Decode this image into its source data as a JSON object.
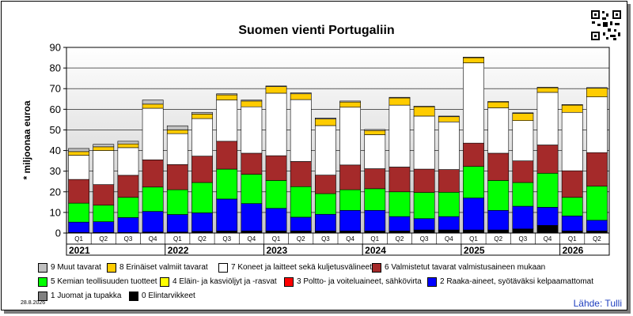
{
  "chart_data": {
    "type": "bar",
    "stacked": true,
    "title": "Suomen vienti Portugaliin",
    "ylabel": "* miljoonaa euroa",
    "ylim": [
      0,
      90
    ],
    "yticks": [
      0,
      10,
      20,
      30,
      40,
      50,
      60,
      70,
      80,
      90
    ],
    "grid": true,
    "legend_position": "bottom",
    "categories": [
      "2021 Q1",
      "2021 Q2",
      "2021 Q3",
      "2021 Q4",
      "2022 Q1",
      "2022 Q2",
      "2022 Q3",
      "2022 Q4",
      "2023 Q1",
      "2023 Q2",
      "2023 Q3",
      "2023 Q4",
      "2024 Q1",
      "2024 Q2",
      "2024 Q3",
      "2024 Q4",
      "2025 Q1",
      "2025 Q2",
      "2025 Q3",
      "2025 Q4",
      "2026 Q1",
      "2026 Q2"
    ],
    "quarter_labels": [
      "Q1",
      "Q2",
      "Q3",
      "Q4",
      "Q1",
      "Q2",
      "Q3",
      "Q4",
      "Q1",
      "Q2",
      "Q3",
      "Q4",
      "Q1",
      "Q2",
      "Q3",
      "Q4",
      "Q1",
      "Q2",
      "Q3",
      "Q4",
      "Q1",
      "Q2"
    ],
    "years": [
      "2021",
      "2022",
      "2023",
      "2024",
      "2025",
      "2026"
    ],
    "series": [
      {
        "name": "0 Elintarvikkeet",
        "color": "#000000",
        "values": [
          0.3,
          0.3,
          0.3,
          0.5,
          0.5,
          0.8,
          1.0,
          1.0,
          1.0,
          1.0,
          1.0,
          1.0,
          1.0,
          1.0,
          1.5,
          1.5,
          1.5,
          1.5,
          2.0,
          3.7,
          1.0,
          1.0
        ]
      },
      {
        "name": "1 Juomat ja tupakka",
        "color": "#808080",
        "values": [
          0,
          0,
          0,
          0,
          0,
          0,
          0,
          0,
          0,
          0,
          0,
          0,
          0,
          0,
          0,
          0,
          0,
          0,
          0,
          0,
          0,
          0
        ]
      },
      {
        "name": "2 Raaka-aineet, syötäväksi kelpaamattomat",
        "color": "#0000ff",
        "values": [
          5.0,
          5.2,
          7.2,
          10.0,
          8.5,
          9.0,
          15.5,
          13.3,
          11.0,
          6.7,
          8.1,
          10.0,
          10.0,
          7.0,
          5.5,
          6.5,
          15.5,
          9.5,
          11.0,
          8.8,
          7.3,
          5.2
        ]
      },
      {
        "name": "3 Poltto- ja voiteluaineet, sähkövirta",
        "color": "#ff0000",
        "values": [
          0,
          0,
          0,
          0,
          0,
          0,
          0,
          0,
          0,
          0,
          0,
          0,
          0,
          0,
          0,
          0,
          0,
          0,
          0,
          0,
          0,
          0
        ]
      },
      {
        "name": "4 Eläin- ja kasviöljyt ja -rasvat",
        "color": "#ffff00",
        "values": [
          0,
          0,
          0,
          0,
          0,
          0,
          0,
          0,
          0,
          0,
          0,
          0,
          0,
          0,
          0,
          0,
          0,
          0,
          0,
          0,
          0,
          0
        ]
      },
      {
        "name": "5 Kemian teollisuuden tuotteet",
        "color": "#00ff00",
        "values": [
          9.2,
          8.0,
          9.8,
          11.8,
          12.0,
          14.7,
          14.5,
          14.2,
          13.5,
          14.8,
          10.0,
          10.0,
          10.5,
          12.0,
          12.7,
          11.8,
          15.3,
          14.5,
          11.5,
          16.5,
          9.0,
          16.5
        ]
      },
      {
        "name": "6 Valmistetut tavarat valmistusaineen mukaan",
        "color": "#a52a2a",
        "values": [
          11.5,
          10.0,
          10.7,
          13.2,
          12.2,
          12.8,
          13.5,
          10.2,
          12.0,
          12.2,
          9.0,
          12.0,
          9.7,
          12.0,
          11.3,
          11.0,
          11.3,
          13.2,
          10.5,
          13.7,
          12.9,
          16.3
        ]
      },
      {
        "name": "7 Koneet ja laitteet sekä kuljetusvälineet",
        "color": "#ffffff",
        "values": [
          11.7,
          16.5,
          13.4,
          25.0,
          15.0,
          18.2,
          20.0,
          22.5,
          30.3,
          30.0,
          24.0,
          28.0,
          16.5,
          30.0,
          25.7,
          23.1,
          38.9,
          22.0,
          19.5,
          25.5,
          28.3,
          27.0
        ]
      },
      {
        "name": "8 Erinäiset valmiit tavarat",
        "color": "#ffcc00",
        "values": [
          1.8,
          1.8,
          1.8,
          2.0,
          1.8,
          2.2,
          2.5,
          2.8,
          3.2,
          2.8,
          3.2,
          2.5,
          2.0,
          3.5,
          4.5,
          2.5,
          2.5,
          2.8,
          3.5,
          2.2,
          3.5,
          4.2
        ]
      },
      {
        "name": "9 Muut tavarat",
        "color": "#c0c0c0",
        "values": [
          1.5,
          1.2,
          1.3,
          2.0,
          2.0,
          0.8,
          0.5,
          0.5,
          0.3,
          0.5,
          0.5,
          0.5,
          0.5,
          0.3,
          0.3,
          0.3,
          0.3,
          0.3,
          0.3,
          0.3,
          0.3,
          0.3
        ]
      }
    ]
  },
  "legend_order": [
    9,
    8,
    7,
    6,
    5,
    4,
    3,
    2,
    1,
    0
  ],
  "date_label": "28.8.2026",
  "source_label": "Lähde: Tulli",
  "qr_icon": "qr-code-icon"
}
